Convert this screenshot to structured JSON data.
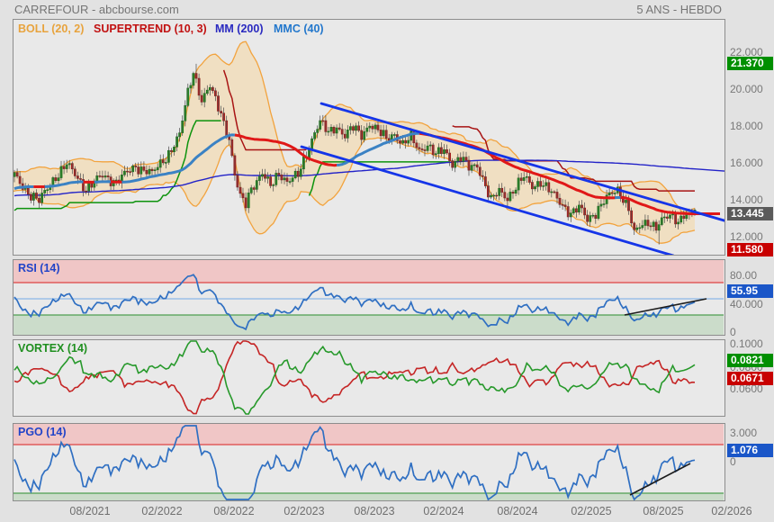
{
  "header": {
    "title": "CARREFOUR - abcbourse.com",
    "timeframe": "5 ANS - HEBDO"
  },
  "legend": {
    "boll": "BOLL (20, 2)",
    "supertrend": "SUPERTREND (10, 3)",
    "mm": "MM (200)",
    "mmc": "MMC (40)"
  },
  "panel_titles": {
    "rsi": "RSI (14)",
    "vortex": "VORTEX (14)",
    "pgo": "PGO (14)"
  },
  "colors": {
    "boll": "#e8a33d",
    "supertrend": "#c11212",
    "mm": "#2a2ac0",
    "mmc": "#2277cc",
    "badge_green": "#008f00",
    "badge_gray": "#5a5a5a",
    "badge_red": "#c80000",
    "badge_blue": "#1a56c8",
    "rsi_title": "#2244c8",
    "vortex_title": "#1f8f1f",
    "pgo_title": "#2244c8"
  },
  "axes": {
    "main_ticks": [
      "22.000",
      "20.000",
      "18.000",
      "16.000",
      "14.000",
      "12.000"
    ],
    "main_badges": {
      "high": "21.370",
      "last": "13.445",
      "low": "11.580"
    },
    "rsi_ticks": [
      "80.00",
      "40.000",
      "0"
    ],
    "rsi_badge": "55.95",
    "vortex_ticks": [
      "0.1000",
      "0.0800",
      "0.0600"
    ],
    "vortex_badges": {
      "vi_plus": "0.0821",
      "vi_minus": "0.0671"
    },
    "pgo_ticks": [
      "3.000",
      "0"
    ],
    "pgo_badge": "1.076",
    "x_labels": [
      "08/2021",
      "02/2022",
      "08/2022",
      "02/2023",
      "08/2023",
      "02/2024",
      "08/2024",
      "02/2025",
      "08/2025",
      "02/2026"
    ]
  },
  "chart_data": [
    {
      "type": "candlestick",
      "name": "CARREFOUR",
      "timeframe": "weekly",
      "years": 5,
      "high_5y": 21.37,
      "last_close": 13.445,
      "low_5y": 11.58,
      "y_ticks": [
        22,
        20,
        18,
        16,
        14,
        12
      ],
      "overlays": [
        {
          "name": "bollinger",
          "params": [
            20,
            2
          ]
        },
        {
          "name": "supertrend",
          "params": [
            10,
            3
          ]
        },
        {
          "name": "sma",
          "params": [
            200
          ]
        },
        {
          "name": "colored_sma",
          "params": [
            40
          ]
        }
      ],
      "close_anchors": [
        [
          0,
          15.3
        ],
        [
          5,
          14.4
        ],
        [
          9,
          13.9
        ],
        [
          14,
          15.1
        ],
        [
          19,
          15.9
        ],
        [
          23,
          15.2
        ],
        [
          26,
          14.6
        ],
        [
          32,
          15.3
        ],
        [
          37,
          15.0
        ],
        [
          44,
          15.8
        ],
        [
          48,
          15.6
        ],
        [
          50,
          15.4
        ],
        [
          55,
          16.3
        ],
        [
          60,
          17.5
        ],
        [
          63,
          19.8
        ],
        [
          65,
          21.0
        ],
        [
          68,
          19.4
        ],
        [
          71,
          20.1
        ],
        [
          75,
          18.7
        ],
        [
          78,
          17.3
        ],
        [
          80,
          15.3
        ],
        [
          82,
          14.1
        ],
        [
          84,
          13.8
        ],
        [
          86,
          14.7
        ],
        [
          90,
          15.4
        ],
        [
          93,
          14.7
        ],
        [
          96,
          15.5
        ],
        [
          99,
          15.0
        ],
        [
          103,
          15.3
        ],
        [
          106,
          16.5
        ],
        [
          109,
          17.7
        ],
        [
          111,
          18.2
        ],
        [
          114,
          17.6
        ],
        [
          117,
          18.0
        ],
        [
          120,
          17.5
        ],
        [
          123,
          17.9
        ],
        [
          126,
          17.5
        ],
        [
          129,
          18.15
        ],
        [
          132,
          17.7
        ],
        [
          135,
          17.3
        ],
        [
          138,
          17.6
        ],
        [
          141,
          17.0
        ],
        [
          144,
          17.35
        ],
        [
          147,
          16.7
        ],
        [
          150,
          17.0
        ],
        [
          153,
          16.4
        ],
        [
          156,
          16.7
        ],
        [
          159,
          16.0
        ],
        [
          162,
          16.3
        ],
        [
          165,
          15.7
        ],
        [
          168,
          15.9
        ],
        [
          170,
          15.2
        ],
        [
          173,
          13.95
        ],
        [
          176,
          14.45
        ],
        [
          179,
          14.15
        ],
        [
          182,
          14.7
        ],
        [
          185,
          15.2
        ],
        [
          188,
          14.75
        ],
        [
          191,
          15.0
        ],
        [
          194,
          14.5
        ],
        [
          197,
          14.05
        ],
        [
          200,
          13.6
        ],
        [
          202,
          13.25
        ],
        [
          205,
          13.55
        ],
        [
          208,
          12.95
        ],
        [
          211,
          13.35
        ],
        [
          214,
          13.9
        ],
        [
          217,
          14.35
        ],
        [
          219,
          14.55
        ],
        [
          221,
          14.15
        ],
        [
          223,
          13.5
        ],
        [
          225,
          12.15
        ],
        [
          227,
          12.5
        ],
        [
          230,
          12.85
        ],
        [
          233,
          12.55
        ],
        [
          236,
          12.95
        ],
        [
          239,
          13.15
        ],
        [
          241,
          12.85
        ],
        [
          243,
          13.25
        ],
        [
          245,
          13.1
        ],
        [
          247,
          13.445
        ]
      ],
      "trend_channel": {
        "upper": [
          357,
          115,
          808,
          246
        ],
        "lower": [
          335,
          163,
          748,
          284
        ]
      }
    },
    {
      "type": "line",
      "name": "RSI",
      "params": [
        14
      ],
      "last": 55.95,
      "levels": [
        80,
        55.95,
        40
      ],
      "trendline": [
        694,
        350,
        785,
        332
      ]
    },
    {
      "type": "line",
      "name": "VORTEX",
      "params": [
        14
      ],
      "last_plus": 0.0821,
      "last_minus": 0.0671,
      "ticks": [
        0.1,
        0.08,
        0.06
      ]
    },
    {
      "type": "line",
      "name": "PGO",
      "params": [
        14
      ],
      "last": 1.076,
      "levels": [
        3,
        -3
      ],
      "trendline": [
        700,
        550,
        767,
        515
      ]
    }
  ]
}
